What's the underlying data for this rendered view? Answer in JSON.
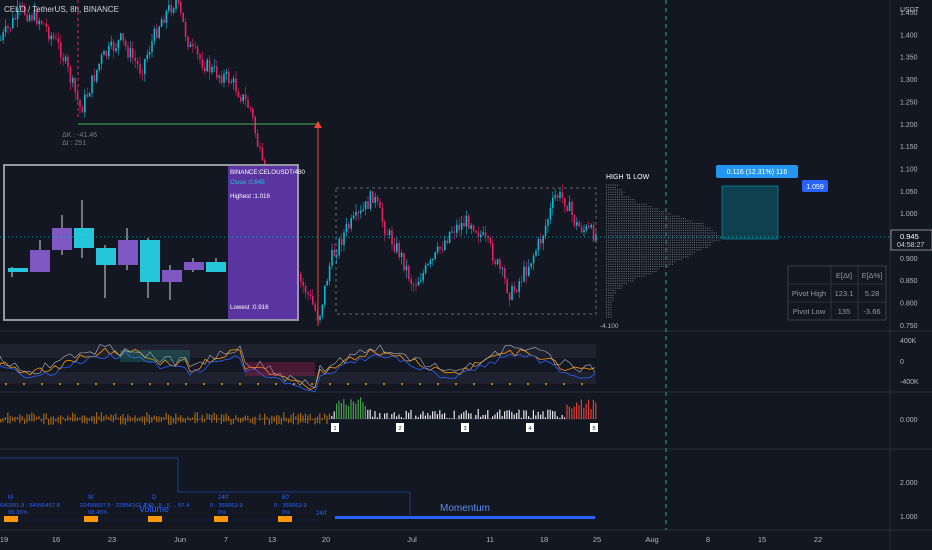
{
  "header": {
    "symbol": "CELO / TetherUS, 8h, BINANCE"
  },
  "price_axis": {
    "currency": "USDT",
    "ticks": [
      "1.450",
      "1.400",
      "1.350",
      "1.300",
      "1.250",
      "1.200",
      "1.150",
      "1.100",
      "1.050",
      "1.000",
      "0.950",
      "0.900",
      "0.850",
      "0.800",
      "0.750"
    ],
    "last_price": "0.945",
    "countdown": "04:58:27"
  },
  "time_axis": {
    "ticks": [
      "19",
      "16",
      "23",
      "Jun",
      "7",
      "13",
      "20",
      "Jul",
      "11",
      "18",
      "25",
      "Aug",
      "8",
      "15",
      "22"
    ]
  },
  "measure": {
    "delta_bars": "ΔK : -41.46",
    "delta_time": "Δt : 251"
  },
  "inset": {
    "symbol": "BINANCE:CELOUSDT/480",
    "close": "Close :0.945",
    "highest": "Highest :1.016",
    "lowest": "Lowest :0.916"
  },
  "volume_profile": {
    "title": "HIGH ⇅ LOW",
    "bottom_label": "-4.100"
  },
  "position_tool": {
    "label": "0.116 (12.31%) 116",
    "target": "1.059"
  },
  "pivot_table": {
    "headers": [
      "",
      "E[Δt]",
      "E[Δ%]"
    ],
    "rows": [
      [
        "Pivot High",
        "123.1",
        "5.28"
      ],
      [
        "Pivot Low",
        "135",
        "-3.66"
      ]
    ]
  },
  "osc_axis": {
    "ticks": [
      "400K",
      "0",
      "-400K"
    ]
  },
  "vol_axis": {
    "ticks": [
      "0.000"
    ]
  },
  "vol_markers": [
    "1",
    "2",
    "3",
    "4",
    "5"
  ],
  "momentum_axis": {
    "ticks": [
      "2.000",
      "1.000"
    ]
  },
  "momentum": {
    "title": "Momentum",
    "volume_label": "Volume",
    "stats": [
      {
        "tag": "M",
        "value": "640391.9 - 54995457.8",
        "pct": "99.35%"
      },
      {
        "tag": "W",
        "value": "22499097.5 - 22854161.4",
        "pct": "98.45%"
      },
      {
        "tag": "D",
        "value": "749...8 - 5 ... 57.4",
        "pct": ""
      },
      {
        "tag": "240'",
        "value": "0 - 355063.9",
        "pct": "0%"
      },
      {
        "tag": "60'",
        "value": "0 - 355063.9",
        "pct": "0%"
      }
    ],
    "end_tag": "240'"
  },
  "colors": {
    "bg": "#131722",
    "up": "#00bcd4",
    "down": "#e91e63",
    "grid": "#1e222d",
    "inset_up": "#26c6da",
    "inset_down": "#7e57c2",
    "purple": "#673ab7",
    "blue": "#2962ff",
    "orange": "#ff9800",
    "green": "#4caf50",
    "red": "#f44336"
  }
}
